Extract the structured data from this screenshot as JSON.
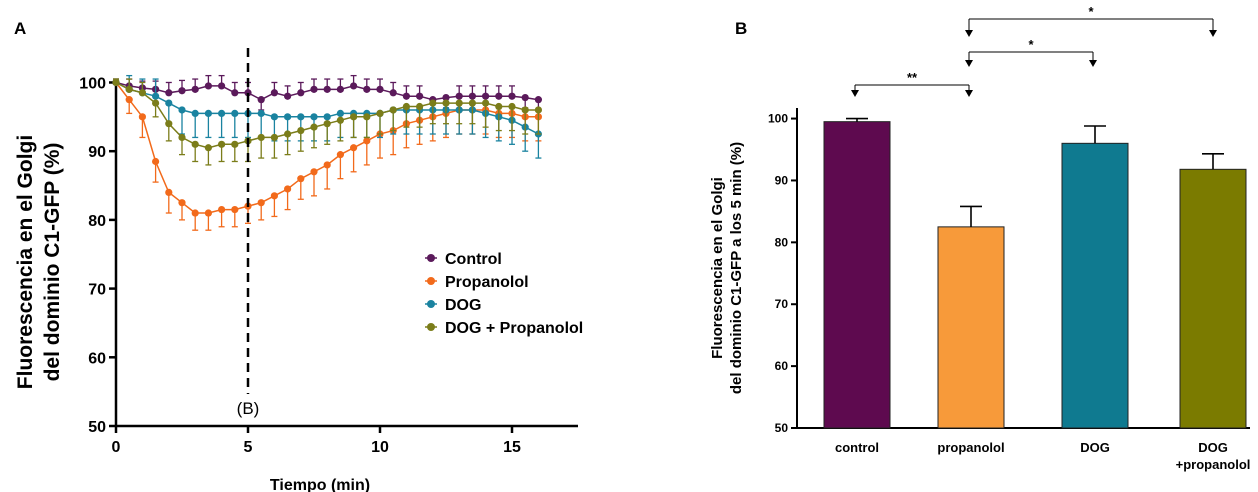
{
  "panel_a": {
    "label": "A",
    "chart_data": {
      "type": "line",
      "title": "",
      "xlabel": "Tiempo (min)",
      "ylabel": [
        "Fluorescencia en el Golgi",
        "del dominio C1-GFP (%)"
      ],
      "xlim": [
        0,
        17.5
      ],
      "ylim": [
        50,
        104
      ],
      "xticks": [
        "0",
        "5",
        "10",
        "15"
      ],
      "yticks": [
        "50",
        "60",
        "70",
        "80",
        "90",
        "100"
      ],
      "annotations": [
        {
          "text": "(B)",
          "x": 5
        }
      ],
      "legend_position": "center-right",
      "series": [
        {
          "name": "Control",
          "color": "#5b1a5b",
          "x": [
            0,
            0.5,
            1,
            1.5,
            2,
            2.5,
            3,
            3.5,
            4,
            4.5,
            5,
            5.5,
            6,
            6.5,
            7,
            7.5,
            8,
            8.5,
            9,
            9.5,
            10,
            10.5,
            11,
            11.5,
            12,
            12.5,
            13,
            13.5,
            14,
            14.5,
            15,
            15.5,
            16
          ],
          "y": [
            100,
            99.5,
            99.2,
            99,
            98.5,
            98.8,
            99,
            99.5,
            99.5,
            98.5,
            98.5,
            97.5,
            98.5,
            98,
            98.5,
            99,
            99,
            99,
            99.5,
            99,
            99,
            98.5,
            98,
            98,
            97.5,
            97.8,
            98,
            98,
            98,
            98,
            98,
            97.8,
            97.5
          ],
          "err": [
            0.5,
            1,
            1,
            1.2,
            1.5,
            1.5,
            1.5,
            1.5,
            1.5,
            1.5,
            1.5,
            1.5,
            1.5,
            1.5,
            1.5,
            1.5,
            1.5,
            1.5,
            1.5,
            1.5,
            1.5,
            1.5,
            1.5,
            1.5,
            1.5,
            1.5,
            1.5,
            1.5,
            1.5,
            1.5,
            1.5,
            1.5,
            1.5
          ]
        },
        {
          "name": "Propanolol",
          "color": "#f26a1b",
          "x": [
            0,
            0.5,
            1,
            1.5,
            2,
            2.5,
            3,
            3.5,
            4,
            4.5,
            5,
            5.5,
            6,
            6.5,
            7,
            7.5,
            8,
            8.5,
            9,
            9.5,
            10,
            10.5,
            11,
            11.5,
            12,
            12.5,
            13,
            13.5,
            14,
            14.5,
            15,
            15.5,
            16
          ],
          "y": [
            100,
            97.5,
            95,
            88.5,
            84,
            82.5,
            81,
            81,
            81.5,
            81.5,
            82,
            82.5,
            83.5,
            84.5,
            86,
            87,
            88,
            89.5,
            90.5,
            91.5,
            92.5,
            93,
            94,
            94.5,
            95,
            95.5,
            96,
            96,
            96,
            95.5,
            95.5,
            95,
            95
          ],
          "err": [
            0.5,
            2,
            3,
            3,
            3,
            2.5,
            2.5,
            2.5,
            2.5,
            2.5,
            2.5,
            2.5,
            3,
            3,
            3,
            3.5,
            3.5,
            3.5,
            3.5,
            3.5,
            3.5,
            3.5,
            3.5,
            3.5,
            3.5,
            3.5,
            3.5,
            3.5,
            3.5,
            3.5,
            3.5,
            3.5,
            3.5
          ]
        },
        {
          "name": "DOG",
          "color": "#1a83a0",
          "x": [
            0,
            0.5,
            1,
            1.5,
            2,
            2.5,
            3,
            3.5,
            4,
            4.5,
            5,
            5.5,
            6,
            6.5,
            7,
            7.5,
            8,
            8.5,
            9,
            9.5,
            10,
            10.5,
            11,
            11.5,
            12,
            12.5,
            13,
            13.5,
            14,
            14.5,
            15,
            15.5,
            16
          ],
          "y": [
            100,
            99,
            98.5,
            98,
            97,
            96,
            95.5,
            95.5,
            95.5,
            95.5,
            95.5,
            95.5,
            95,
            95,
            95,
            95,
            95,
            95.5,
            95.5,
            95.5,
            95.5,
            96,
            96,
            96,
            96,
            96,
            96,
            96,
            95.5,
            95,
            94.5,
            93.5,
            92.5
          ],
          "err": [
            0.5,
            2,
            2,
            2.5,
            3,
            3.5,
            3.5,
            3.5,
            3.5,
            3.5,
            3.5,
            3.5,
            3.5,
            3.5,
            3.5,
            3.5,
            3.5,
            3.5,
            3.5,
            3.5,
            3.5,
            3.5,
            3.5,
            3.5,
            3.5,
            3.5,
            3.5,
            3.5,
            3.5,
            3.5,
            3.5,
            3.5,
            3.5
          ]
        },
        {
          "name": "DOG + Propanolol",
          "color": "#7b7d1a",
          "x": [
            0,
            0.5,
            1,
            1.5,
            2,
            2.5,
            3,
            3.5,
            4,
            4.5,
            5,
            5.5,
            6,
            6.5,
            7,
            7.5,
            8,
            8.5,
            9,
            9.5,
            10,
            10.5,
            11,
            11.5,
            12,
            12.5,
            13,
            13.5,
            14,
            14.5,
            15,
            15.5,
            16
          ],
          "y": [
            100,
            99,
            98.5,
            97,
            94,
            92,
            91,
            90.5,
            91,
            91,
            91.5,
            92,
            92,
            92.5,
            93,
            93.5,
            94,
            94.5,
            95,
            95,
            95.5,
            96,
            96.5,
            96.5,
            97,
            97,
            97,
            97,
            97,
            96.5,
            96.5,
            96,
            96
          ],
          "err": [
            0.5,
            1.5,
            1.5,
            2,
            2.5,
            2.5,
            2.5,
            2.5,
            2.5,
            2.5,
            3,
            3,
            3,
            3,
            3,
            3,
            3,
            3,
            3,
            3,
            3,
            3,
            3,
            3,
            3,
            3,
            3,
            3,
            3.5,
            3.5,
            3.5,
            3.5,
            3.5
          ]
        }
      ]
    }
  },
  "panel_b": {
    "label": "B",
    "chart_data": {
      "type": "bar",
      "title": "",
      "xlabel": "",
      "ylabel": [
        "Fluorescencia en el Golgi",
        "del dominio C1-GFP a los 5 min (%)"
      ],
      "ylim": [
        50,
        103
      ],
      "yticks": [
        "50",
        "60",
        "70",
        "80",
        "90",
        "100"
      ],
      "categories": [
        [
          "control"
        ],
        [
          "propanolol"
        ],
        [
          "DOG"
        ],
        [
          "DOG",
          "+propanolol"
        ]
      ],
      "values": [
        99.5,
        82.5,
        96,
        91.8
      ],
      "errors": [
        0.5,
        3.3,
        2.8,
        2.5
      ],
      "colors": [
        "#5e0a4f",
        "#f79a3a",
        "#0f7a90",
        "#7b7b00"
      ],
      "significance": [
        {
          "from": 0,
          "to": 1,
          "label": "**"
        },
        {
          "from": 1,
          "to": 2,
          "label": "*"
        },
        {
          "from": 1,
          "to": 3,
          "label": "*"
        }
      ]
    }
  }
}
